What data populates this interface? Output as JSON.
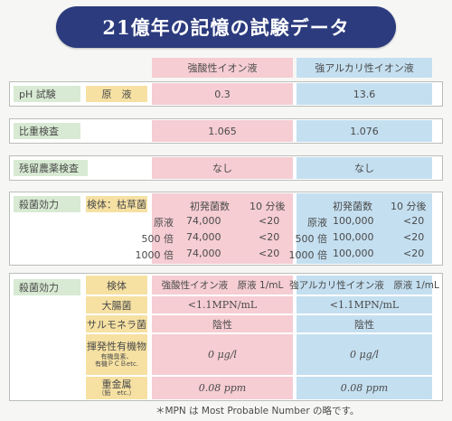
{
  "title": "21億年の記憶の試験データ",
  "columns": {
    "acid": "強酸性イオン液",
    "alkaline": "強アルカリ性イオン液"
  },
  "ph": {
    "label": "pH 試験",
    "sub": "原　液",
    "acid": "0.3",
    "alkaline": "13.6"
  },
  "gravity": {
    "label": "比重検査",
    "acid": "1.065",
    "alkaline": "1.076"
  },
  "pesticide": {
    "label": "残留農薬検査",
    "acid": "なし",
    "alkaline": "なし"
  },
  "sterilize1": {
    "label": "殺菌効力",
    "sub": "検体：枯草菌",
    "acid": {
      "head1": "初発菌数",
      "head2": "10 分後",
      "rows": [
        {
          "name": "原液",
          "count": "74,000",
          "after": "<20"
        },
        {
          "name": "500 倍",
          "count": "74,000",
          "after": "<20"
        },
        {
          "name": "1000 倍",
          "count": "74,000",
          "after": "<20"
        }
      ]
    },
    "alkaline": {
      "head1": "初発菌数",
      "head2": "10 分後",
      "rows": [
        {
          "name": "原液",
          "count": "100,000",
          "after": "<20"
        },
        {
          "name": "500 倍",
          "count": "100,000",
          "after": "<20"
        },
        {
          "name": "1000 倍",
          "count": "100,000",
          "after": "<20"
        }
      ]
    }
  },
  "sterilize2": {
    "label": "殺菌効力",
    "header": {
      "sub": "検体",
      "acid": "強酸性イオン液　原液 1/mL",
      "alkaline": "強アルカリ性イオン液　原液 1/mL"
    },
    "rows": [
      {
        "sub": "大腸菌",
        "acid": "<1.1MPN/mL",
        "alkaline": "<1.1MPN/mL"
      },
      {
        "sub": "サルモネラ菌",
        "acid": "陰性",
        "alkaline": "陰性"
      },
      {
        "sub": "揮発性有機物",
        "sub_small1": "有機臭素、",
        "sub_small2": "有機ＰＣＢetc.",
        "acid": "0 μg/l",
        "alkaline": "0 μg/l"
      },
      {
        "sub": "重金属",
        "sub_small1": "（鉛　etc.）",
        "acid": "0.08 ppm",
        "alkaline": "0.08 ppm"
      }
    ]
  },
  "footnote": "＊MPN は Most Probable Number の略です。",
  "colors": {
    "banner": "#2c3b7d",
    "pink": "#f5cdd3",
    "blue": "#c4dff0",
    "green": "#d8ead3",
    "yellow": "#f6e1a3"
  }
}
